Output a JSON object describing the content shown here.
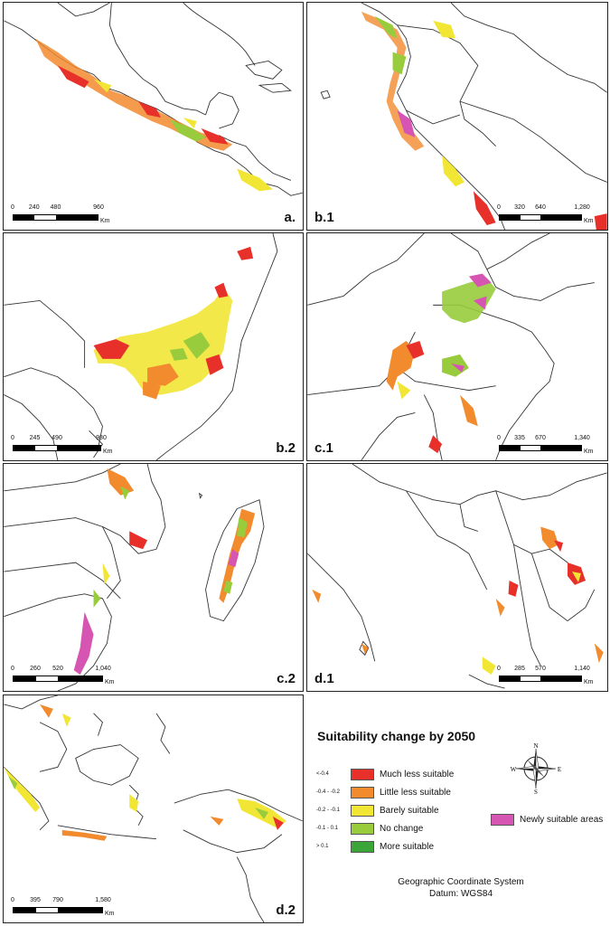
{
  "colors": {
    "much_less": "#e8302a",
    "little_less": "#f28a2e",
    "barely": "#f2e635",
    "no_change": "#98cc3c",
    "more": "#3aa63a",
    "newly": "#d654b2"
  },
  "panels": [
    {
      "id": "a",
      "label": "a.",
      "scale": {
        "ticks": [
          "0",
          "240",
          "480",
          "960"
        ],
        "unit": "Km"
      }
    },
    {
      "id": "b1",
      "label": "b.1",
      "scale": {
        "ticks": [
          "0",
          "320",
          "640",
          "1,280"
        ],
        "unit": "Km"
      }
    },
    {
      "id": "b2",
      "label": "b.2",
      "scale": {
        "ticks": [
          "0",
          "245",
          "490",
          "980"
        ],
        "unit": "Km"
      }
    },
    {
      "id": "c1",
      "label": "c.1",
      "scale": {
        "ticks": [
          "0",
          "335",
          "670",
          "1,340"
        ],
        "unit": "Km"
      }
    },
    {
      "id": "c2",
      "label": "c.2",
      "scale": {
        "ticks": [
          "0",
          "260",
          "520",
          "1,040"
        ],
        "unit": "Km"
      }
    },
    {
      "id": "d1",
      "label": "d.1",
      "scale": {
        "ticks": [
          "0",
          "285",
          "570",
          "1,140"
        ],
        "unit": "Km"
      }
    },
    {
      "id": "d2",
      "label": "d.2",
      "scale": {
        "ticks": [
          "0",
          "395",
          "790",
          "1,580"
        ],
        "unit": "Km"
      }
    }
  ],
  "legend": {
    "title": "Suitability change by 2050",
    "items": [
      {
        "range": "<-0.4",
        "label": "Much less suitable",
        "color_key": "much_less"
      },
      {
        "range": "-0.4 - -0.2",
        "label": "Little less suitable",
        "color_key": "little_less"
      },
      {
        "range": "-0.2 - -0.1",
        "label": "Barely suitable",
        "color_key": "barely"
      },
      {
        "range": "-0.1 - 0.1",
        "label": "No change",
        "color_key": "no_change"
      },
      {
        "range": "> 0.1",
        "label": "More suitable",
        "color_key": "more"
      }
    ],
    "newly_label": "Newly suitable areas",
    "compass": {
      "n": "N",
      "s": "S",
      "e": "E",
      "w": "W"
    },
    "footer_line1": "Geographic Coordinate System",
    "footer_line2": "Datum: WGS84"
  }
}
